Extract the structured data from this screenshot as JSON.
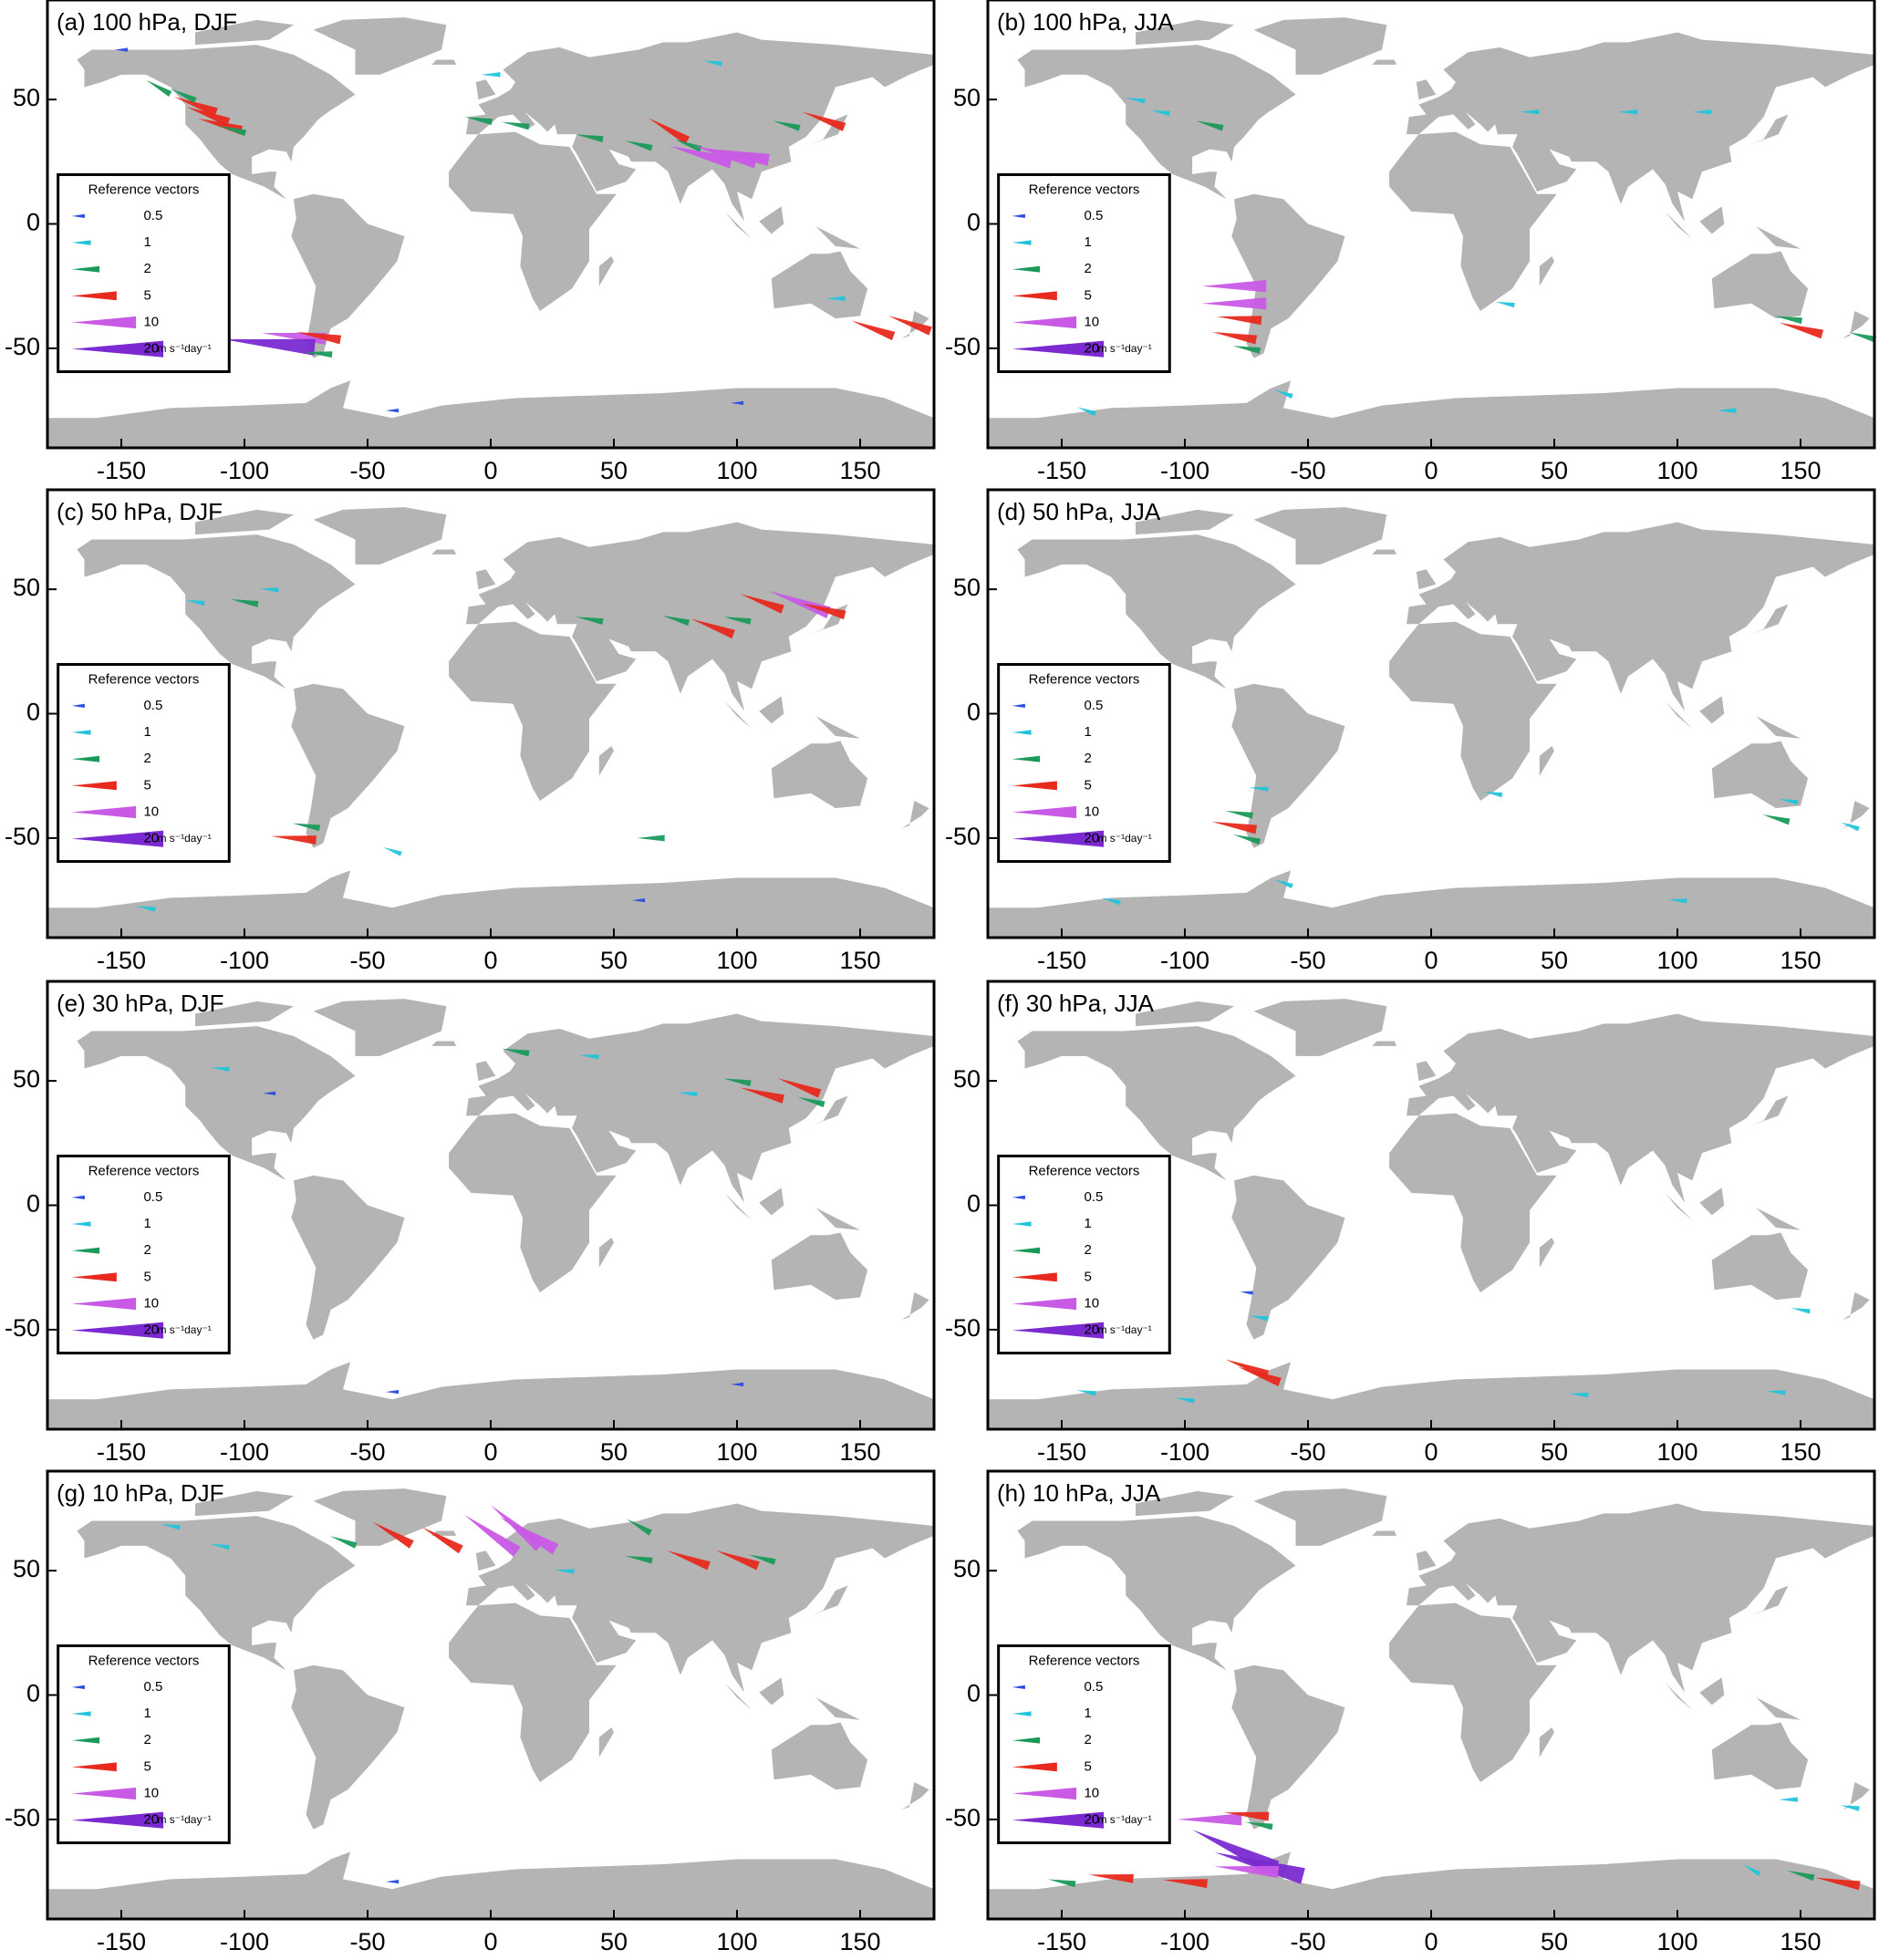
{
  "chart_data": [
    {
      "type": "vector-map",
      "title": "(a) 100 hPa, DJF",
      "xlim": [
        -180,
        180
      ],
      "ylim": [
        -90,
        90
      ],
      "xticks": [
        -150,
        -100,
        -50,
        0,
        50,
        100,
        150
      ],
      "yticks": [
        -50,
        0,
        50
      ],
      "legend": {
        "title": "Reference vectors",
        "values": [
          0.5,
          1,
          2,
          5,
          10,
          20
        ],
        "colors": [
          "#2a4be0",
          "#22c4dc",
          "#1a9a5a",
          "#e82a1e",
          "#c85ae6",
          "#7a2ad0"
        ],
        "unit": "m s⁻¹day⁻¹"
      },
      "vectors": {
        "x": [
          -120,
          -115,
          -110,
          -125,
          -135,
          -105,
          -5,
          10,
          40,
          60,
          72,
          80,
          85,
          95,
          100,
          135,
          120,
          -80,
          -90,
          -70,
          -70,
          155,
          170,
          140,
          -150,
          0,
          90,
          -40,
          100
        ],
        "y": [
          48,
          44,
          40,
          52,
          55,
          38,
          42,
          40,
          35,
          32,
          38,
          32,
          28,
          28,
          28,
          42,
          40,
          -45,
          -48,
          -45,
          -52,
          -42,
          -40,
          -30,
          70,
          60,
          65,
          -75,
          -72
        ],
        "values": [
          5,
          5,
          5,
          2,
          2,
          2,
          2,
          2,
          2,
          2,
          5,
          2,
          10,
          10,
          10,
          5,
          2,
          10,
          20,
          5,
          2,
          5,
          5,
          1,
          0.5,
          1,
          1,
          0.5,
          0.5
        ],
        "directions": [
          160,
          160,
          165,
          155,
          150,
          165,
          170,
          170,
          170,
          165,
          150,
          160,
          165,
          165,
          170,
          160,
          165,
          175,
          175,
          170,
          175,
          160,
          160,
          180,
          180,
          180,
          170,
          180,
          180
        ]
      }
    },
    {
      "type": "vector-map",
      "title": "(b) 100 hPa, JJA",
      "xlim": [
        -180,
        180
      ],
      "ylim": [
        -90,
        90
      ],
      "xticks": [
        -150,
        -100,
        -50,
        0,
        50,
        100,
        150
      ],
      "yticks": [
        -50,
        0,
        50
      ],
      "legend": {
        "title": "Reference vectors",
        "values": [
          0.5,
          1,
          2,
          5,
          10,
          20
        ],
        "colors": [
          "#2a4be0",
          "#22c4dc",
          "#1a9a5a",
          "#e82a1e",
          "#c85ae6",
          "#7a2ad0"
        ],
        "unit": "m s⁻¹day⁻¹"
      },
      "vectors": {
        "x": [
          -80,
          -80,
          -78,
          -80,
          -75,
          -110,
          -90,
          -120,
          40,
          80,
          110,
          145,
          150,
          175,
          -140,
          -60,
          120,
          30
        ],
        "y": [
          -25,
          -32,
          -38,
          -45,
          -50,
          45,
          40,
          50,
          45,
          45,
          45,
          -38,
          -42,
          -45,
          -75,
          -68,
          -75,
          -32
        ],
        "values": [
          10,
          10,
          5,
          5,
          2,
          1,
          2,
          1,
          1,
          1,
          1,
          2,
          5,
          2,
          1,
          1,
          1,
          1
        ],
        "directions": [
          180,
          180,
          175,
          170,
          170,
          170,
          165,
          170,
          180,
          180,
          180,
          170,
          165,
          165,
          160,
          160,
          180,
          170
        ]
      }
    },
    {
      "type": "vector-map",
      "title": "(c) 50 hPa, DJF",
      "xlim": [
        -180,
        180
      ],
      "ylim": [
        -90,
        90
      ],
      "xticks": [
        -150,
        -100,
        -50,
        0,
        50,
        100,
        150
      ],
      "yticks": [
        -50,
        0,
        50
      ],
      "legend": {
        "title": "Reference vectors",
        "values": [
          0.5,
          1,
          2,
          5,
          10,
          20
        ],
        "colors": [
          "#2a4be0",
          "#22c4dc",
          "#1a9a5a",
          "#e82a1e",
          "#c85ae6",
          "#7a2ad0"
        ],
        "unit": "m s⁻¹day⁻¹"
      },
      "vectors": {
        "x": [
          110,
          125,
          135,
          90,
          75,
          40,
          100,
          -100,
          -120,
          -90,
          -75,
          -80,
          65,
          -40,
          -140,
          60
        ],
        "y": [
          45,
          45,
          42,
          35,
          38,
          38,
          38,
          45,
          45,
          50,
          -45,
          -50,
          -50,
          -55,
          -78,
          -75
        ],
        "values": [
          5,
          10,
          5,
          5,
          2,
          2,
          2,
          2,
          1,
          1,
          2,
          5,
          2,
          1,
          1,
          0.5
        ],
        "directions": [
          160,
          160,
          165,
          160,
          165,
          170,
          170,
          170,
          170,
          175,
          170,
          175,
          180,
          160,
          170,
          180
        ]
      }
    },
    {
      "type": "vector-map",
      "title": "(d) 50 hPa, JJA",
      "xlim": [
        -180,
        180
      ],
      "ylim": [
        -90,
        90
      ],
      "xticks": [
        -150,
        -100,
        -50,
        0,
        50,
        100,
        150
      ],
      "yticks": [
        -50,
        0,
        50
      ],
      "legend": {
        "title": "Reference vectors",
        "values": [
          0.5,
          1,
          2,
          5,
          10,
          20
        ],
        "colors": [
          "#2a4be0",
          "#22c4dc",
          "#1a9a5a",
          "#e82a1e",
          "#c85ae6",
          "#7a2ad0"
        ],
        "unit": "m s⁻¹day⁻¹"
      },
      "vectors": {
        "x": [
          -78,
          -80,
          -75,
          -70,
          145,
          140,
          170,
          25,
          -130,
          -60,
          100
        ],
        "y": [
          -40,
          -45,
          -50,
          -30,
          -35,
          -42,
          -45,
          -32,
          -75,
          -68,
          -75
        ],
        "values": [
          2,
          5,
          2,
          1,
          1,
          2,
          1,
          1,
          1,
          1,
          1
        ],
        "directions": [
          170,
          170,
          165,
          175,
          170,
          165,
          160,
          170,
          165,
          160,
          175
        ]
      }
    },
    {
      "type": "vector-map",
      "title": "(e) 30 hPa, DJF",
      "xlim": [
        -180,
        180
      ],
      "ylim": [
        -90,
        90
      ],
      "xticks": [
        -150,
        -100,
        -50,
        0,
        50,
        100,
        150
      ],
      "yticks": [
        -50,
        0,
        50
      ],
      "legend": {
        "title": "Reference vectors",
        "values": [
          0.5,
          1,
          2,
          5,
          10,
          20
        ],
        "colors": [
          "#2a4be0",
          "#22c4dc",
          "#1a9a5a",
          "#e82a1e",
          "#c85ae6",
          "#7a2ad0"
        ],
        "unit": "m s⁻¹day⁻¹"
      },
      "vectors": {
        "x": [
          110,
          125,
          130,
          100,
          80,
          10,
          40,
          -110,
          -90,
          -40,
          100
        ],
        "y": [
          45,
          48,
          42,
          50,
          45,
          62,
          60,
          55,
          45,
          -75,
          -72
        ],
        "values": [
          5,
          5,
          2,
          2,
          1,
          2,
          1,
          1,
          0.5,
          0.5,
          0.5
        ],
        "directions": [
          165,
          160,
          165,
          170,
          175,
          170,
          175,
          175,
          180,
          180,
          180
        ]
      }
    },
    {
      "type": "vector-map",
      "title": "(f) 30 hPa, JJA",
      "xlim": [
        -180,
        180
      ],
      "ylim": [
        -90,
        90
      ],
      "xticks": [
        -150,
        -100,
        -50,
        0,
        50,
        100,
        150
      ],
      "yticks": [
        -50,
        0,
        50
      ],
      "legend": {
        "title": "Reference vectors",
        "values": [
          0.5,
          1,
          2,
          5,
          10,
          20
        ],
        "colors": [
          "#2a4be0",
          "#22c4dc",
          "#1a9a5a",
          "#e82a1e",
          "#c85ae6",
          "#7a2ad0"
        ],
        "unit": "m s⁻¹day⁻¹"
      },
      "vectors": {
        "x": [
          -75,
          -70,
          -100,
          -140,
          60,
          140,
          -70,
          -75,
          150
        ],
        "y": [
          -65,
          -68,
          -78,
          -75,
          -76,
          -75,
          -45,
          -35,
          -42
        ],
        "values": [
          5,
          5,
          1,
          1,
          1,
          1,
          1,
          0.5,
          1
        ],
        "directions": [
          160,
          160,
          170,
          170,
          175,
          175,
          170,
          175,
          170
        ]
      }
    },
    {
      "type": "vector-map",
      "title": "(g) 10 hPa, DJF",
      "xlim": [
        -180,
        180
      ],
      "ylim": [
        -90,
        90
      ],
      "xticks": [
        -150,
        -100,
        -50,
        0,
        50,
        100,
        150
      ],
      "yticks": [
        -50,
        0,
        50
      ],
      "legend": {
        "title": "Reference vectors",
        "values": [
          0.5,
          1,
          2,
          5,
          10,
          20
        ],
        "colors": [
          "#2a4be0",
          "#22c4dc",
          "#1a9a5a",
          "#e82a1e",
          "#c85ae6",
          "#7a2ad0"
        ],
        "unit": "m s⁻¹day⁻¹"
      },
      "vectors": {
        "x": [
          -40,
          -20,
          0,
          10,
          15,
          -60,
          80,
          100,
          110,
          60,
          30,
          60,
          -110,
          -130,
          -40
        ],
        "y": [
          65,
          63,
          65,
          68,
          65,
          62,
          55,
          55,
          55,
          55,
          50,
          68,
          60,
          68,
          -75
        ],
        "values": [
          5,
          5,
          10,
          10,
          10,
          2,
          5,
          5,
          2,
          2,
          1,
          2,
          1,
          1,
          0.5
        ],
        "directions": [
          150,
          150,
          145,
          140,
          150,
          160,
          160,
          160,
          165,
          170,
          175,
          150,
          170,
          170,
          180
        ]
      }
    },
    {
      "type": "vector-map",
      "title": "(h) 10 hPa, JJA",
      "xlim": [
        -180,
        180
      ],
      "ylim": [
        -90,
        90
      ],
      "xticks": [
        -150,
        -100,
        -50,
        0,
        50,
        100,
        150
      ],
      "yticks": [
        -50,
        0,
        50
      ],
      "legend": {
        "title": "Reference vectors",
        "values": [
          0.5,
          1,
          2,
          5,
          10,
          20
        ],
        "colors": [
          "#2a4be0",
          "#22c4dc",
          "#1a9a5a",
          "#e82a1e",
          "#c85ae6",
          "#7a2ad0"
        ],
        "unit": "m s⁻¹day⁻¹"
      },
      "vectors": {
        "x": [
          -80,
          -70,
          -75,
          -100,
          -130,
          -150,
          150,
          165,
          130,
          -90,
          -75,
          -70,
          170,
          145
        ],
        "y": [
          -62,
          -68,
          -70,
          -75,
          -73,
          -75,
          -72,
          -75,
          -70,
          -50,
          -48,
          -52,
          -45,
          -42
        ],
        "values": [
          20,
          20,
          10,
          5,
          5,
          2,
          2,
          5,
          1,
          10,
          5,
          2,
          1,
          1
        ],
        "directions": [
          155,
          165,
          175,
          175,
          175,
          170,
          165,
          170,
          150,
          180,
          175,
          170,
          170,
          180
        ]
      }
    }
  ]
}
